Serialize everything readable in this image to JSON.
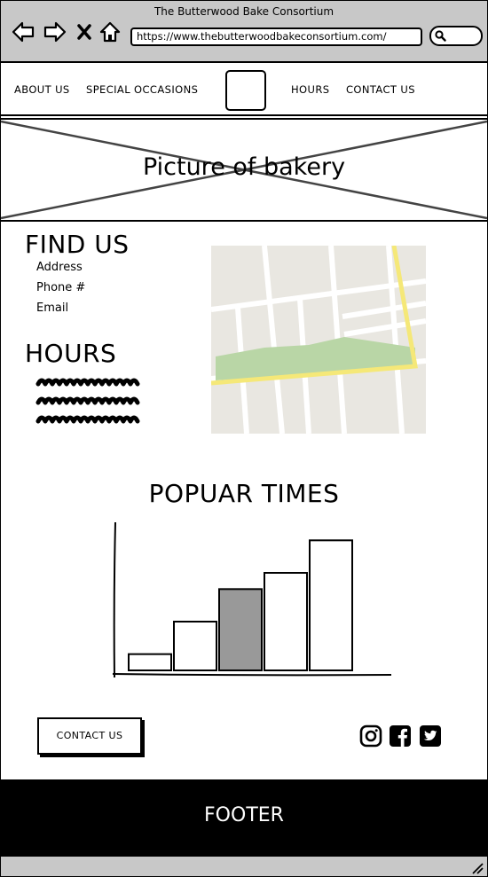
{
  "browser": {
    "window_title": "The Butterwood Bake Consortium",
    "url": "https://www.thebutterwoodbakeconsortium.com/",
    "icons": [
      "back-arrow-icon",
      "forward-arrow-icon",
      "close-x-icon",
      "home-icon",
      "search-icon"
    ]
  },
  "nav": {
    "about": "ABOUT US",
    "special": "SPECIAL OCCASIONS",
    "hours": "HOURS",
    "contact": "CONTACT US"
  },
  "hero": {
    "caption": "Picture of bakery"
  },
  "find_us": {
    "heading": "FIND US",
    "address": "Address",
    "phone": "Phone #",
    "email": "Email"
  },
  "hours_section": {
    "heading": "HOURS"
  },
  "popular": {
    "heading": "POPUAR TIMES"
  },
  "chart_data": {
    "type": "bar",
    "title": "POPUAR TIMES",
    "categories": [
      "",
      "",
      "",
      "",
      ""
    ],
    "values": [
      1,
      3,
      5,
      6,
      8
    ],
    "highlighted_index": 2,
    "ylim": [
      0,
      9
    ],
    "xlabel": "",
    "ylabel": "",
    "bar_color": "#ffffff",
    "highlight_color": "#999999"
  },
  "contact_button": {
    "label": "CONTACT US"
  },
  "social": {
    "icons": [
      "instagram-icon",
      "facebook-icon",
      "twitter-icon"
    ]
  },
  "footer": {
    "label": "FOOTER"
  },
  "colors": {
    "chrome": "#c8c8c8",
    "map_bg": "#e9e7e1",
    "map_park": "#b9d6a6",
    "map_road": "#f5e878"
  }
}
